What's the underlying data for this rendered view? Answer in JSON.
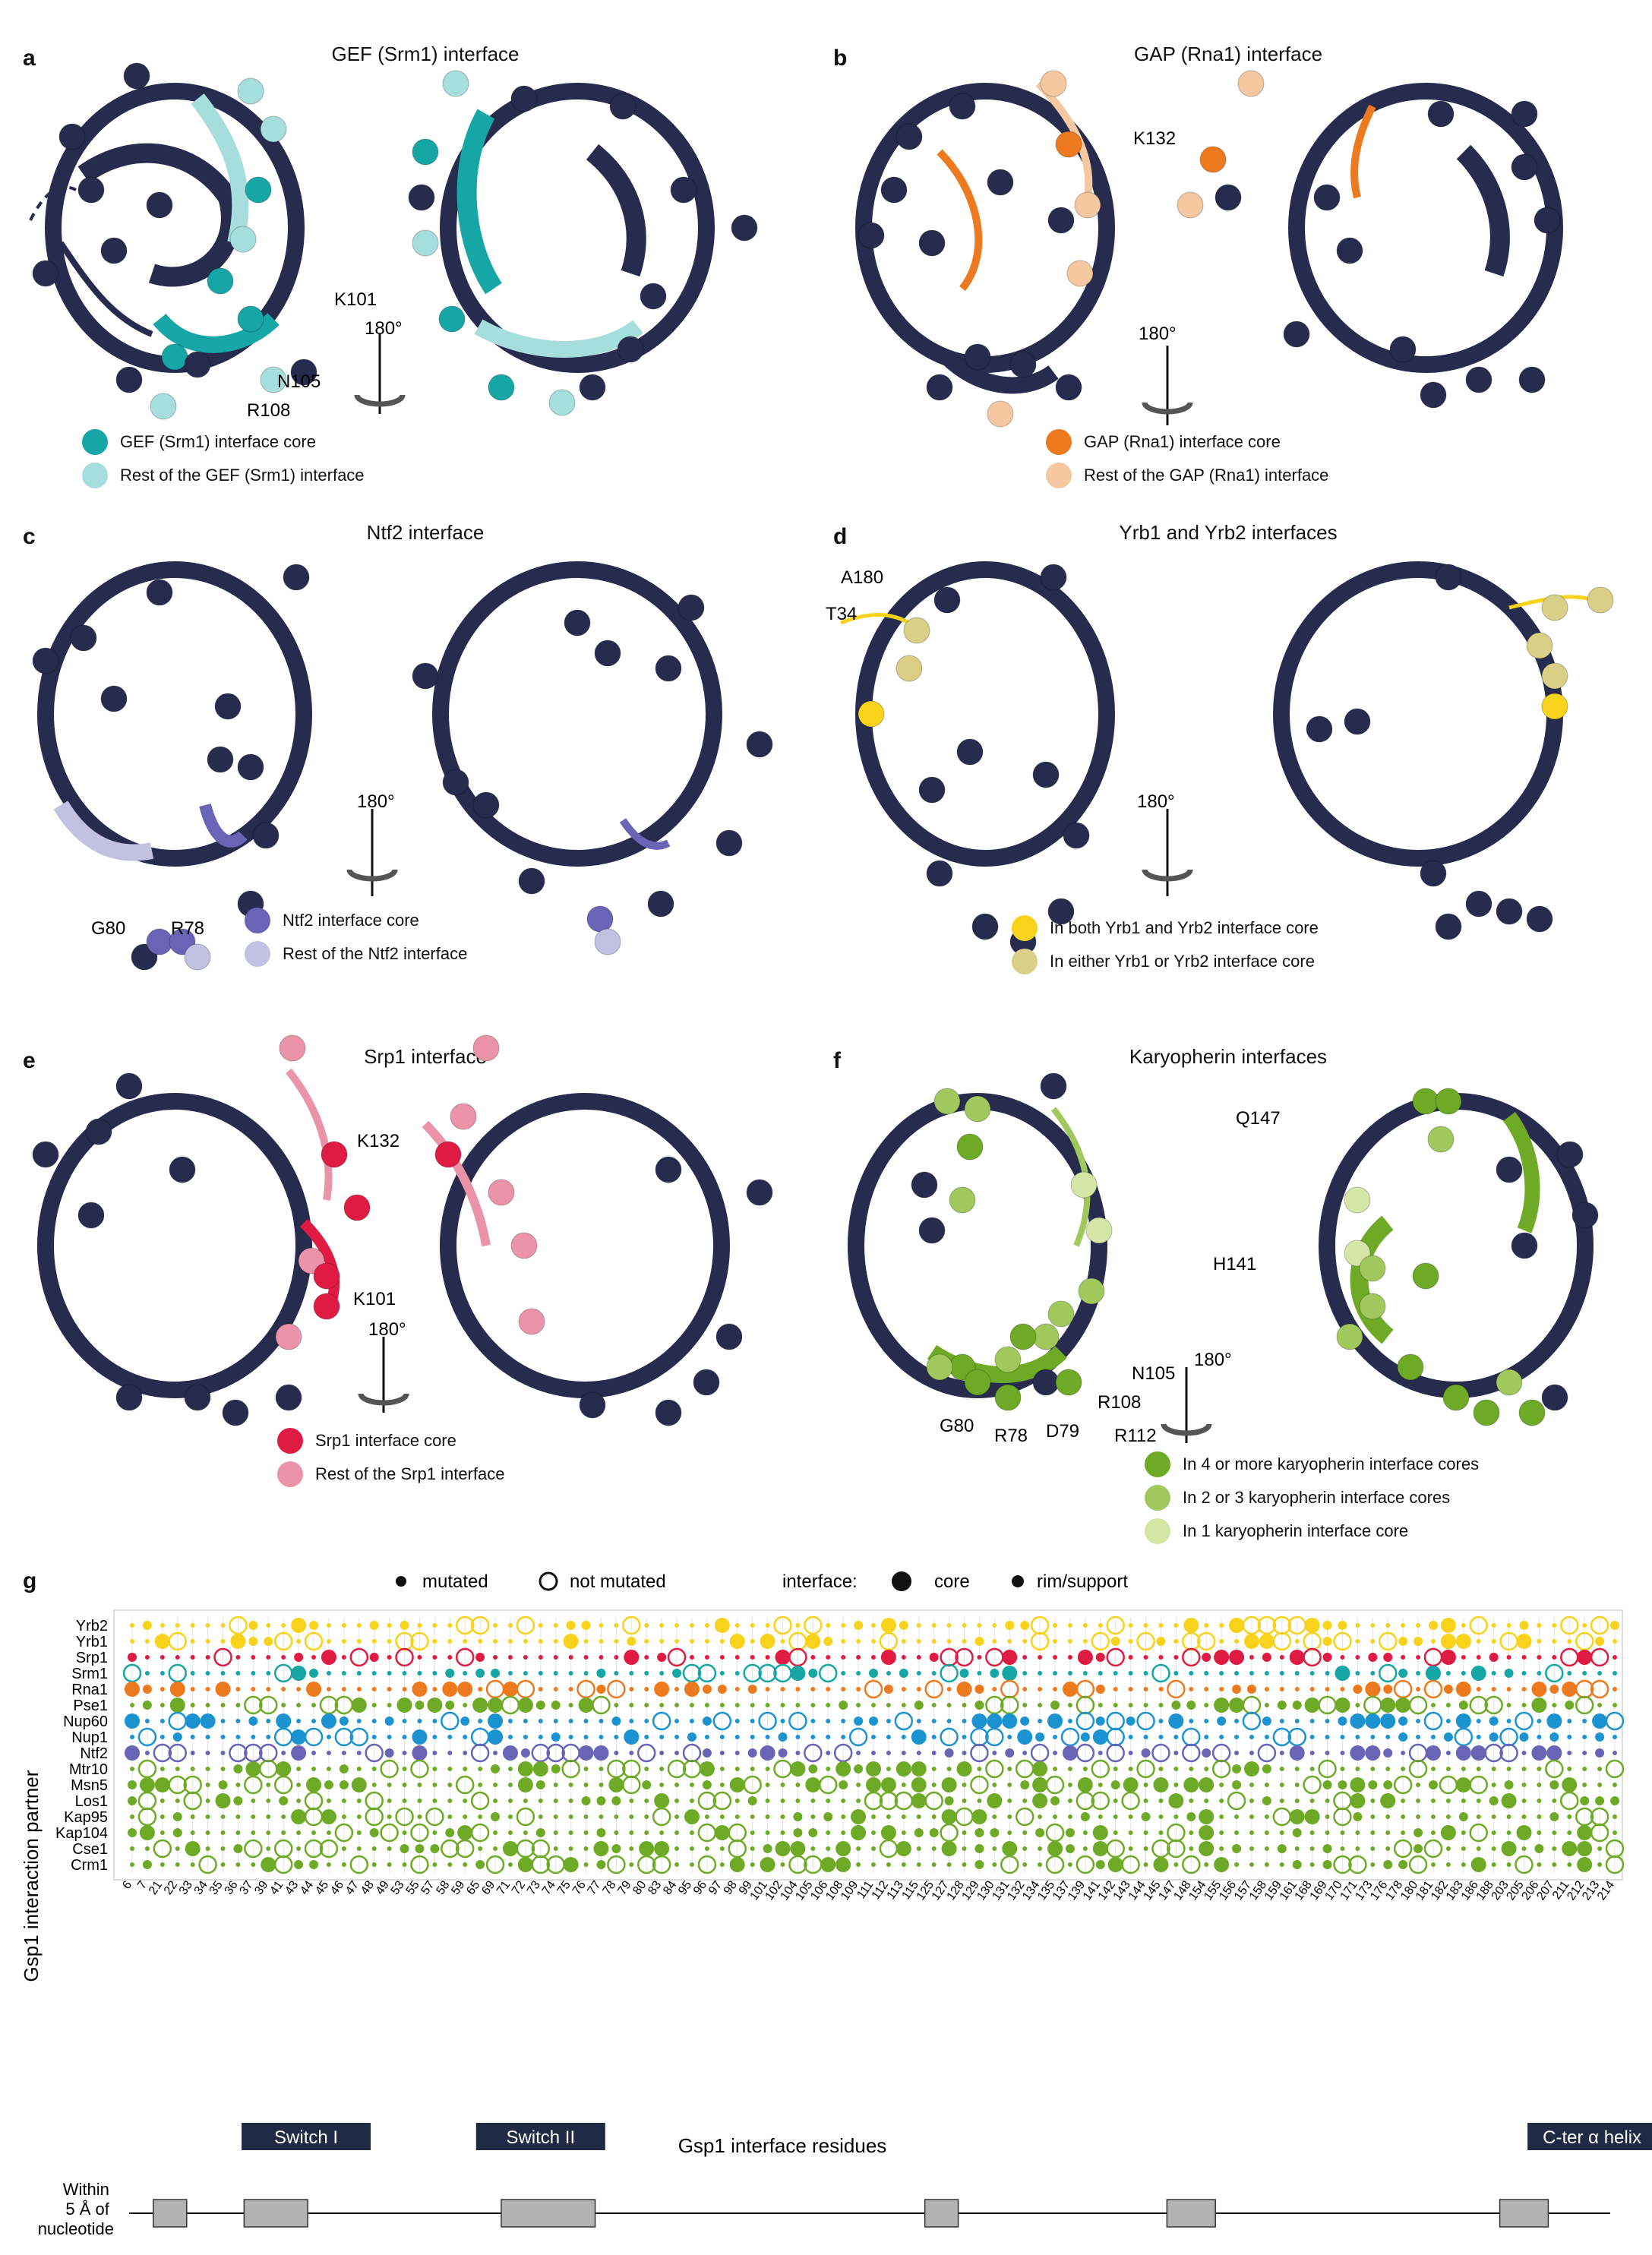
{
  "colors": {
    "navy": "#272b4d",
    "gef_core": "#17a6a6",
    "gef_rim": "#a6dedd",
    "gap_core": "#ee7a1f",
    "gap_rim": "#f5c8a1",
    "ntf2_core": "#6b63b5",
    "ntf2_rim": "#c3c1e1",
    "yrb_core": "#f8d21b",
    "yrb_rim": "#dacf86",
    "srp1_core": "#e01b43",
    "srp1_rim": "#eb93a8",
    "kary_4": "#6eaa26",
    "kary_2": "#a1c85d",
    "kary_1": "#d6e6a7"
  },
  "panels": [
    {
      "letter": "a",
      "title": "GEF (Srm1) interface",
      "labels": [
        "K101",
        "N105",
        "R108"
      ],
      "rotation": "180°",
      "legend": [
        {
          "text": "GEF (Srm1) interface core",
          "color": "#17a6a6"
        },
        {
          "text": "Rest of the GEF (Srm1) interface",
          "color": "#a6dedd"
        }
      ]
    },
    {
      "letter": "b",
      "title": "GAP (Rna1) interface",
      "labels": [
        "K132"
      ],
      "rotation": "180°",
      "legend": [
        {
          "text": "GAP (Rna1) interface core",
          "color": "#ee7a1f"
        },
        {
          "text": "Rest of the GAP (Rna1) interface",
          "color": "#f5c8a1"
        }
      ]
    },
    {
      "letter": "c",
      "title": "Ntf2 interface",
      "labels": [
        "G80",
        "R78"
      ],
      "rotation": "180°",
      "legend": [
        {
          "text": "Ntf2 interface core",
          "color": "#6b63b5"
        },
        {
          "text": "Rest of the Ntf2 interface",
          "color": "#c3c1e1"
        }
      ]
    },
    {
      "letter": "d",
      "title": "Yrb1 and Yrb2 interfaces",
      "labels": [
        "A180",
        "T34"
      ],
      "rotation": "180°",
      "legend": [
        {
          "text": "In both Yrb1 and Yrb2 interface core",
          "color": "#f8d21b"
        },
        {
          "text": "In either Yrb1 or Yrb2 interface core",
          "color": "#dacf86"
        }
      ]
    },
    {
      "letter": "e",
      "title": "Srp1 interface",
      "labels": [
        "K132",
        "K101"
      ],
      "rotation": "180°",
      "legend": [
        {
          "text": "Srp1 interface core",
          "color": "#e01b43"
        },
        {
          "text": "Rest of the Srp1 interface",
          "color": "#eb93a8"
        }
      ]
    },
    {
      "letter": "f",
      "title": "Karyopherin interfaces",
      "labels": [
        "Q147",
        "H141",
        "N105",
        "R108",
        "G80",
        "R78",
        "D79",
        "R112"
      ],
      "rotation": "180°",
      "legend": [
        {
          "text": "In 4 or more karyopherin interface cores",
          "color": "#6eaa26"
        },
        {
          "text": "In 2 or 3 karyopherin interface cores",
          "color": "#a1c85d"
        },
        {
          "text": "In 1 karyopherin interface core",
          "color": "#d6e6a7"
        }
      ]
    }
  ],
  "panel_g": {
    "letter": "g",
    "legend": {
      "mutated": "mutated",
      "not_mutated": "not mutated",
      "interface": "interface:",
      "core": "core",
      "rim": "rim/support"
    },
    "ylabel": "Gsp1 interaction partner",
    "xlabel": "Gsp1 interface residues",
    "partners": [
      "Yrb2",
      "Yrb1",
      "Srp1",
      "Srm1",
      "Rna1",
      "Pse1",
      "Nup60",
      "Nup1",
      "Ntf2",
      "Mtr10",
      "Msn5",
      "Los1",
      "Kap95",
      "Kap104",
      "Cse1",
      "Crm1"
    ],
    "partner_colors": [
      "#f8d21b",
      "#f8d21b",
      "#e01b43",
      "#17a6a6",
      "#ee7a1f",
      "#6eaa26",
      "#1c93d1",
      "#1c93d1",
      "#6b63b5",
      "#6eaa26",
      "#6eaa26",
      "#6eaa26",
      "#6eaa26",
      "#6eaa26",
      "#6eaa26",
      "#6eaa26"
    ],
    "residues": [
      "6",
      "7",
      "21",
      "22",
      "33",
      "34",
      "35",
      "36",
      "37",
      "39",
      "41",
      "43",
      "44",
      "45",
      "46",
      "47",
      "48",
      "49",
      "53",
      "55",
      "57",
      "58",
      "59",
      "65",
      "69",
      "71",
      "72",
      "73",
      "74",
      "75",
      "76",
      "77",
      "78",
      "79",
      "80",
      "83",
      "84",
      "95",
      "96",
      "97",
      "98",
      "99",
      "101",
      "102",
      "104",
      "105",
      "106",
      "108",
      "109",
      "111",
      "112",
      "113",
      "115",
      "125",
      "127",
      "128",
      "129",
      "130",
      "131",
      "132",
      "134",
      "135",
      "137",
      "139",
      "141",
      "142",
      "143",
      "144",
      "145",
      "147",
      "148",
      "154",
      "155",
      "156",
      "157",
      "158",
      "159",
      "161",
      "168",
      "169",
      "170",
      "171",
      "173",
      "176",
      "178",
      "180",
      "181",
      "182",
      "183",
      "186",
      "188",
      "203",
      "205",
      "206",
      "207",
      "211",
      "212",
      "213",
      "214"
    ],
    "features": [
      {
        "label": "Switch I",
        "start": "39",
        "end": "46"
      },
      {
        "label": "Switch II",
        "start": "69",
        "end": "76"
      },
      {
        "label": "C-ter α helix",
        "start": "211",
        "end": "214"
      }
    ],
    "nucleotide_label": "Within\n5 Å of\nnucleotide",
    "nucleotide_boxes": [
      [
        "21",
        "22"
      ],
      [
        "37",
        "43"
      ],
      [
        "71",
        "76"
      ],
      [
        "125",
        "127"
      ],
      [
        "147",
        "154"
      ],
      [
        "203",
        "206"
      ]
    ]
  }
}
